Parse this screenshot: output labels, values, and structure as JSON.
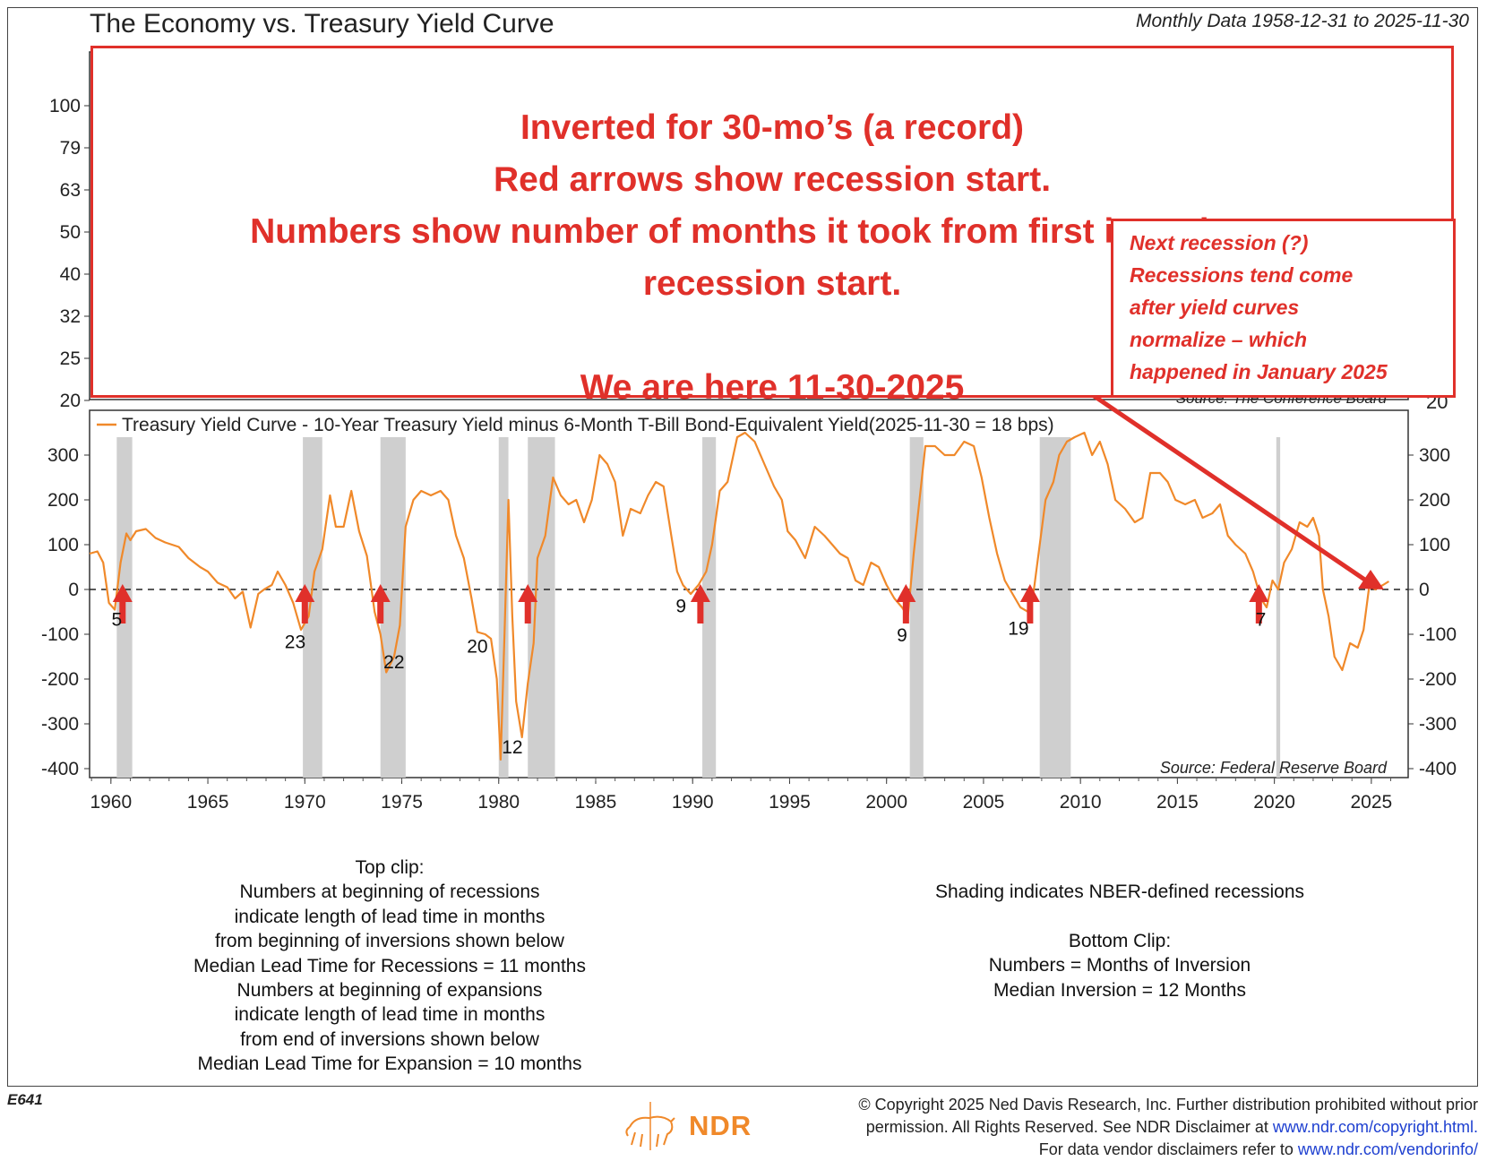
{
  "header": {
    "title": "The Economy vs. Treasury Yield Curve",
    "date_range": "Monthly Data 1958-12-31 to 2025-11-30"
  },
  "annotations": {
    "main_lines": [
      "Inverted for 30-mo’s (a record)",
      "Red arrows show recession start.",
      "Numbers show number of months it took from first inverting to",
      "recession start.",
      "",
      "We are here 11-30-2025"
    ],
    "side_lines": [
      "Next recession (?)",
      "Recessions tend come",
      "after yield curves",
      "normalize – which",
      "happened in January 2025"
    ],
    "accent_color": "#e0302a"
  },
  "top_clip": {
    "source_partial": "Source:   The Conference Board",
    "axis_ticks": [
      "100",
      "79",
      "63",
      "50",
      "40",
      "32",
      "25",
      "20"
    ],
    "right_tick_partial": "20"
  },
  "chart_data": {
    "type": "line",
    "title": "Treasury Yield Curve - 10-Year Treasury Yield minus 6-Month T-Bill Bond-Equivalent Yield(2025-11-30 = 18 bps)",
    "source": "Source:   Federal Reserve Board",
    "line_color": "#f0892a",
    "xlim": [
      1958.9,
      2026.9
    ],
    "ylim": [
      -420,
      400
    ],
    "y_ticks": [
      "300",
      "200",
      "100",
      "0",
      "-100",
      "-200",
      "-300",
      "-400"
    ],
    "x_ticks": [
      "1960",
      "1965",
      "1970",
      "1975",
      "1980",
      "1985",
      "1990",
      "1995",
      "2000",
      "2005",
      "2010",
      "2015",
      "2020",
      "2025"
    ],
    "zero_line": "dashed",
    "recessions": [
      [
        1960.3,
        1961.1
      ],
      [
        1969.9,
        1970.9
      ],
      [
        1973.9,
        1975.2
      ],
      [
        1980.0,
        1980.5
      ],
      [
        1981.5,
        1982.9
      ],
      [
        1990.5,
        1991.2
      ],
      [
        2001.2,
        2001.9
      ],
      [
        2007.9,
        2009.5
      ],
      [
        2020.1,
        2020.3
      ]
    ],
    "arrows_x": [
      1960.6,
      1970.0,
      1973.9,
      1981.5,
      1990.4,
      2001.0,
      2007.4,
      2019.2,
      2025.3
    ],
    "lead_labels": [
      {
        "text": "5",
        "x": 1960.3,
        "y": -65
      },
      {
        "text": "23",
        "x": 1969.5,
        "y": -115
      },
      {
        "text": "22",
        "x": 1974.6,
        "y": -160
      },
      {
        "text": "20",
        "x": 1978.9,
        "y": -125
      },
      {
        "text": "12",
        "x": 1980.7,
        "y": -350
      },
      {
        "text": "9",
        "x": 1989.4,
        "y": -35
      },
      {
        "text": "9",
        "x": 2000.8,
        "y": -100
      },
      {
        "text": "19",
        "x": 2006.8,
        "y": -85
      },
      {
        "text": "7",
        "x": 2019.3,
        "y": -65
      }
    ],
    "series": [
      {
        "values": [
          [
            1958.9,
            80
          ],
          [
            1959.3,
            85
          ],
          [
            1959.6,
            60
          ],
          [
            1959.9,
            -30
          ],
          [
            1960.2,
            -45
          ],
          [
            1960.5,
            60
          ],
          [
            1960.8,
            125
          ],
          [
            1961.0,
            110
          ],
          [
            1961.3,
            130
          ],
          [
            1961.8,
            135
          ],
          [
            1962.3,
            115
          ],
          [
            1962.8,
            105
          ],
          [
            1963.5,
            95
          ],
          [
            1964.0,
            70
          ],
          [
            1964.6,
            50
          ],
          [
            1965.0,
            40
          ],
          [
            1965.5,
            15
          ],
          [
            1966.0,
            5
          ],
          [
            1966.4,
            -20
          ],
          [
            1966.8,
            -5
          ],
          [
            1967.2,
            -85
          ],
          [
            1967.6,
            -10
          ],
          [
            1967.9,
            0
          ],
          [
            1968.3,
            10
          ],
          [
            1968.6,
            40
          ],
          [
            1969.0,
            10
          ],
          [
            1969.4,
            -30
          ],
          [
            1969.8,
            -90
          ],
          [
            1970.2,
            -60
          ],
          [
            1970.5,
            40
          ],
          [
            1970.9,
            90
          ],
          [
            1971.3,
            210
          ],
          [
            1971.6,
            140
          ],
          [
            1972.0,
            140
          ],
          [
            1972.4,
            220
          ],
          [
            1972.8,
            130
          ],
          [
            1973.2,
            75
          ],
          [
            1973.6,
            -50
          ],
          [
            1973.9,
            -100
          ],
          [
            1974.2,
            -185
          ],
          [
            1974.6,
            -150
          ],
          [
            1974.9,
            -80
          ],
          [
            1975.2,
            140
          ],
          [
            1975.6,
            200
          ],
          [
            1976.0,
            220
          ],
          [
            1976.5,
            210
          ],
          [
            1977.0,
            220
          ],
          [
            1977.4,
            200
          ],
          [
            1977.8,
            120
          ],
          [
            1978.2,
            70
          ],
          [
            1978.6,
            -20
          ],
          [
            1978.9,
            -95
          ],
          [
            1979.3,
            -100
          ],
          [
            1979.6,
            -110
          ],
          [
            1979.9,
            -200
          ],
          [
            1980.1,
            -380
          ],
          [
            1980.3,
            -100
          ],
          [
            1980.5,
            200
          ],
          [
            1980.7,
            -60
          ],
          [
            1980.9,
            -250
          ],
          [
            1981.2,
            -330
          ],
          [
            1981.5,
            -210
          ],
          [
            1981.8,
            -120
          ],
          [
            1982.0,
            70
          ],
          [
            1982.4,
            120
          ],
          [
            1982.8,
            250
          ],
          [
            1983.2,
            210
          ],
          [
            1983.6,
            190
          ],
          [
            1984.0,
            200
          ],
          [
            1984.4,
            150
          ],
          [
            1984.8,
            200
          ],
          [
            1985.2,
            300
          ],
          [
            1985.6,
            280
          ],
          [
            1986.0,
            240
          ],
          [
            1986.4,
            120
          ],
          [
            1986.8,
            180
          ],
          [
            1987.3,
            170
          ],
          [
            1987.7,
            210
          ],
          [
            1988.1,
            240
          ],
          [
            1988.5,
            230
          ],
          [
            1988.9,
            120
          ],
          [
            1989.2,
            40
          ],
          [
            1989.5,
            10
          ],
          [
            1989.9,
            -10
          ],
          [
            1990.3,
            10
          ],
          [
            1990.7,
            40
          ],
          [
            1991.0,
            100
          ],
          [
            1991.4,
            220
          ],
          [
            1991.8,
            240
          ],
          [
            1992.3,
            340
          ],
          [
            1992.7,
            350
          ],
          [
            1993.2,
            330
          ],
          [
            1993.7,
            280
          ],
          [
            1994.2,
            230
          ],
          [
            1994.6,
            200
          ],
          [
            1994.9,
            130
          ],
          [
            1995.3,
            110
          ],
          [
            1995.8,
            70
          ],
          [
            1996.3,
            140
          ],
          [
            1996.8,
            120
          ],
          [
            1997.2,
            100
          ],
          [
            1997.6,
            80
          ],
          [
            1998.0,
            70
          ],
          [
            1998.4,
            20
          ],
          [
            1998.8,
            10
          ],
          [
            1999.2,
            60
          ],
          [
            1999.6,
            50
          ],
          [
            2000.0,
            10
          ],
          [
            2000.4,
            -20
          ],
          [
            2000.8,
            -40
          ],
          [
            2001.1,
            -60
          ],
          [
            2001.4,
            80
          ],
          [
            2001.7,
            200
          ],
          [
            2002.0,
            320
          ],
          [
            2002.5,
            320
          ],
          [
            2003.0,
            300
          ],
          [
            2003.5,
            300
          ],
          [
            2004.0,
            330
          ],
          [
            2004.5,
            320
          ],
          [
            2004.9,
            250
          ],
          [
            2005.3,
            160
          ],
          [
            2005.7,
            80
          ],
          [
            2006.1,
            20
          ],
          [
            2006.5,
            -10
          ],
          [
            2006.9,
            -40
          ],
          [
            2007.3,
            -50
          ],
          [
            2007.6,
            0
          ],
          [
            2007.9,
            100
          ],
          [
            2008.2,
            200
          ],
          [
            2008.6,
            240
          ],
          [
            2008.9,
            300
          ],
          [
            2009.3,
            330
          ],
          [
            2009.7,
            340
          ],
          [
            2010.2,
            350
          ],
          [
            2010.6,
            300
          ],
          [
            2011.0,
            330
          ],
          [
            2011.4,
            280
          ],
          [
            2011.8,
            200
          ],
          [
            2012.3,
            180
          ],
          [
            2012.8,
            150
          ],
          [
            2013.2,
            160
          ],
          [
            2013.6,
            260
          ],
          [
            2014.1,
            260
          ],
          [
            2014.5,
            240
          ],
          [
            2014.9,
            200
          ],
          [
            2015.4,
            190
          ],
          [
            2015.9,
            200
          ],
          [
            2016.3,
            160
          ],
          [
            2016.8,
            170
          ],
          [
            2017.2,
            190
          ],
          [
            2017.6,
            120
          ],
          [
            2018.0,
            100
          ],
          [
            2018.5,
            80
          ],
          [
            2018.9,
            40
          ],
          [
            2019.3,
            -20
          ],
          [
            2019.6,
            -40
          ],
          [
            2019.9,
            20
          ],
          [
            2020.2,
            0
          ],
          [
            2020.5,
            60
          ],
          [
            2020.9,
            90
          ],
          [
            2021.3,
            150
          ],
          [
            2021.7,
            140
          ],
          [
            2022.0,
            160
          ],
          [
            2022.3,
            120
          ],
          [
            2022.5,
            0
          ],
          [
            2022.8,
            -60
          ],
          [
            2023.1,
            -150
          ],
          [
            2023.5,
            -180
          ],
          [
            2023.9,
            -120
          ],
          [
            2024.3,
            -130
          ],
          [
            2024.6,
            -90
          ],
          [
            2024.9,
            10
          ],
          [
            2025.2,
            0
          ],
          [
            2025.6,
            10
          ],
          [
            2025.9,
            18
          ]
        ]
      }
    ]
  },
  "notes_left": [
    "Top clip:",
    "Numbers at beginning of recessions",
    "indicate length of lead time in months",
    "from beginning of inversions shown below",
    "Median Lead Time for Recessions = 11 months",
    "Numbers at beginning of expansions",
    "indicate length of lead time in months",
    "from end of inversions shown below",
    "Median Lead Time for Expansion = 10 months"
  ],
  "notes_right": {
    "shading": "Shading indicates NBER-defined recessions",
    "lines": [
      "Bottom Clip:",
      "Numbers = Months of Inversion",
      "Median Inversion = 12 Months"
    ]
  },
  "footer": {
    "chart_code": "E641",
    "logo_text": "NDR",
    "copyright_1": "© Copyright 2025 Ned Davis Research, Inc. Further distribution prohibited without prior",
    "copyright_2": "permission. All Rights Reserved. See NDR Disclaimer at ",
    "copyright_link": "www.ndr.com/copyright.html.",
    "vendor_1": "For data vendor disclaimers refer to ",
    "vendor_link": "www.ndr.com/vendorinfo/"
  }
}
